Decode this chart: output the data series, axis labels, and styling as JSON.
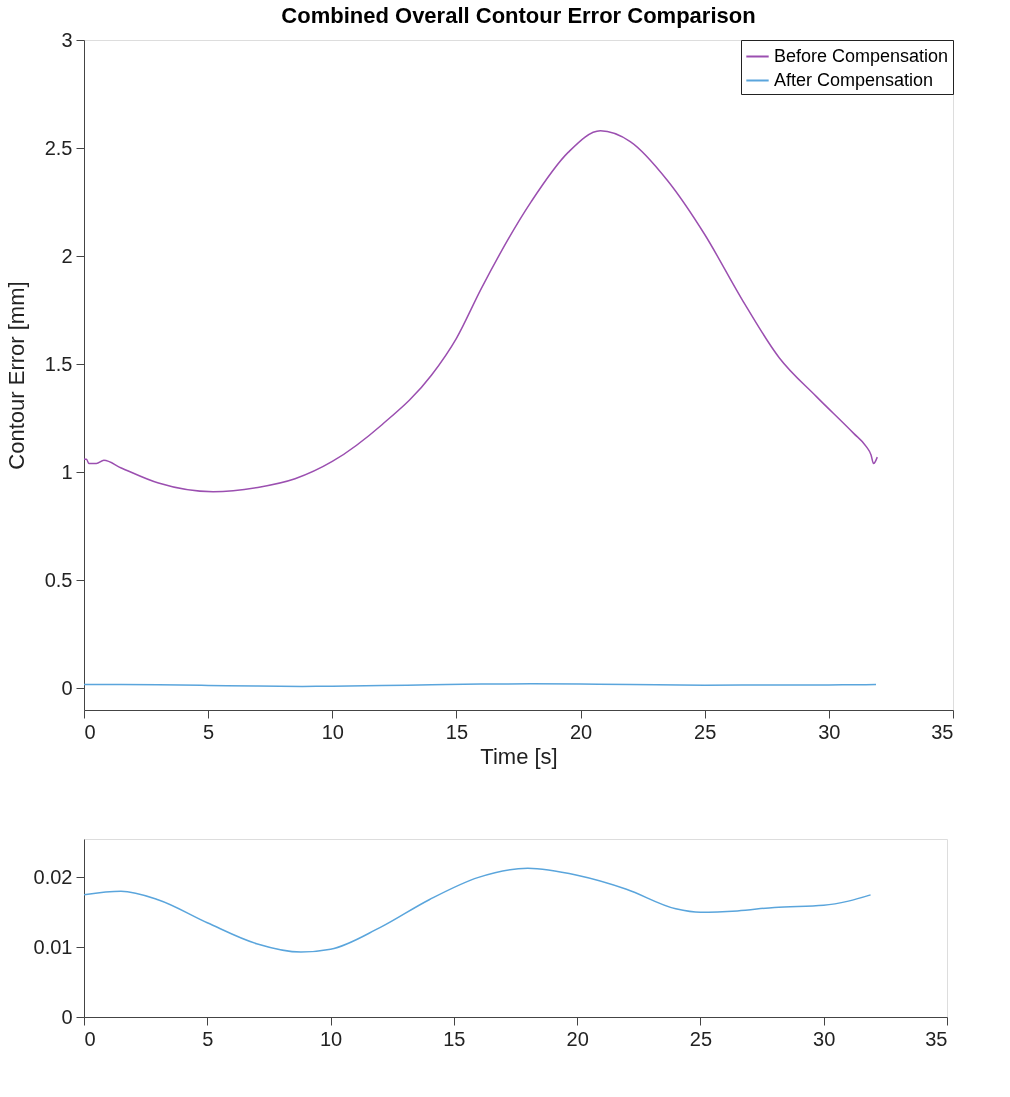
{
  "chart_data": [
    {
      "type": "line",
      "title": "Combined Overall Contour Error Comparison",
      "xlabel": "Time [s]",
      "ylabel": "Contour Error [mm]",
      "xlim": [
        0,
        35
      ],
      "xticks": [
        0,
        5,
        10,
        15,
        20,
        25,
        30,
        35
      ],
      "ylim": [
        -0.1,
        3
      ],
      "yticks": [
        0,
        0.5,
        1,
        1.5,
        2,
        2.5,
        3
      ],
      "grid": false,
      "legend": "top right",
      "line_style": "solid",
      "series": [
        {
          "name": "Before Compensation",
          "color": "#9b4fb0",
          "x": [
            0,
            0.1,
            0.2,
            0.5,
            0.8,
            1.5,
            3,
            5.2,
            7,
            8.5,
            10,
            12,
            14,
            15,
            16,
            18,
            19.5,
            20.8,
            22,
            23.5,
            25,
            26.5,
            28,
            29.5,
            31,
            31.5,
            31.7,
            31.8,
            31.95
          ],
          "values": [
            1.06,
            1.06,
            1.04,
            1.04,
            1.055,
            1.02,
            0.95,
            0.91,
            0.93,
            0.97,
            1.05,
            1.22,
            1.45,
            1.62,
            1.85,
            2.25,
            2.48,
            2.58,
            2.53,
            2.35,
            2.1,
            1.8,
            1.53,
            1.35,
            1.18,
            1.12,
            1.08,
            1.04,
            1.07
          ]
        },
        {
          "name": "After Compensation",
          "color": "#5aa5dc",
          "x": [
            0,
            1.5,
            3,
            5,
            7,
            8.8,
            10,
            12,
            14,
            16,
            18,
            20,
            22,
            24,
            25,
            26.5,
            28,
            30,
            31,
            31.9
          ],
          "values": [
            0.0175,
            0.018,
            0.0168,
            0.0135,
            0.0105,
            0.0093,
            0.0097,
            0.0128,
            0.0168,
            0.02,
            0.0213,
            0.0203,
            0.0183,
            0.0155,
            0.015,
            0.0152,
            0.0157,
            0.016,
            0.0166,
            0.0175
          ]
        }
      ]
    },
    {
      "type": "line",
      "xlim": [
        0,
        35
      ],
      "xticks": [
        0,
        5,
        10,
        15,
        20,
        25,
        30,
        35
      ],
      "ylim": [
        0,
        0.0255
      ],
      "yticks": [
        0,
        0.01,
        0.02
      ],
      "grid": false,
      "line_style": "solid",
      "series": [
        {
          "color": "#5aa5dc",
          "x": [
            0,
            1.5,
            3,
            5,
            7,
            8.8,
            10,
            12,
            14,
            16,
            18,
            20,
            22,
            24,
            25,
            26.5,
            28,
            30,
            31,
            31.9
          ],
          "values": [
            0.0175,
            0.018,
            0.0168,
            0.0135,
            0.0105,
            0.0093,
            0.0097,
            0.0128,
            0.0168,
            0.02,
            0.0213,
            0.0203,
            0.0183,
            0.0155,
            0.015,
            0.0152,
            0.0157,
            0.016,
            0.0166,
            0.0175
          ]
        }
      ]
    }
  ]
}
